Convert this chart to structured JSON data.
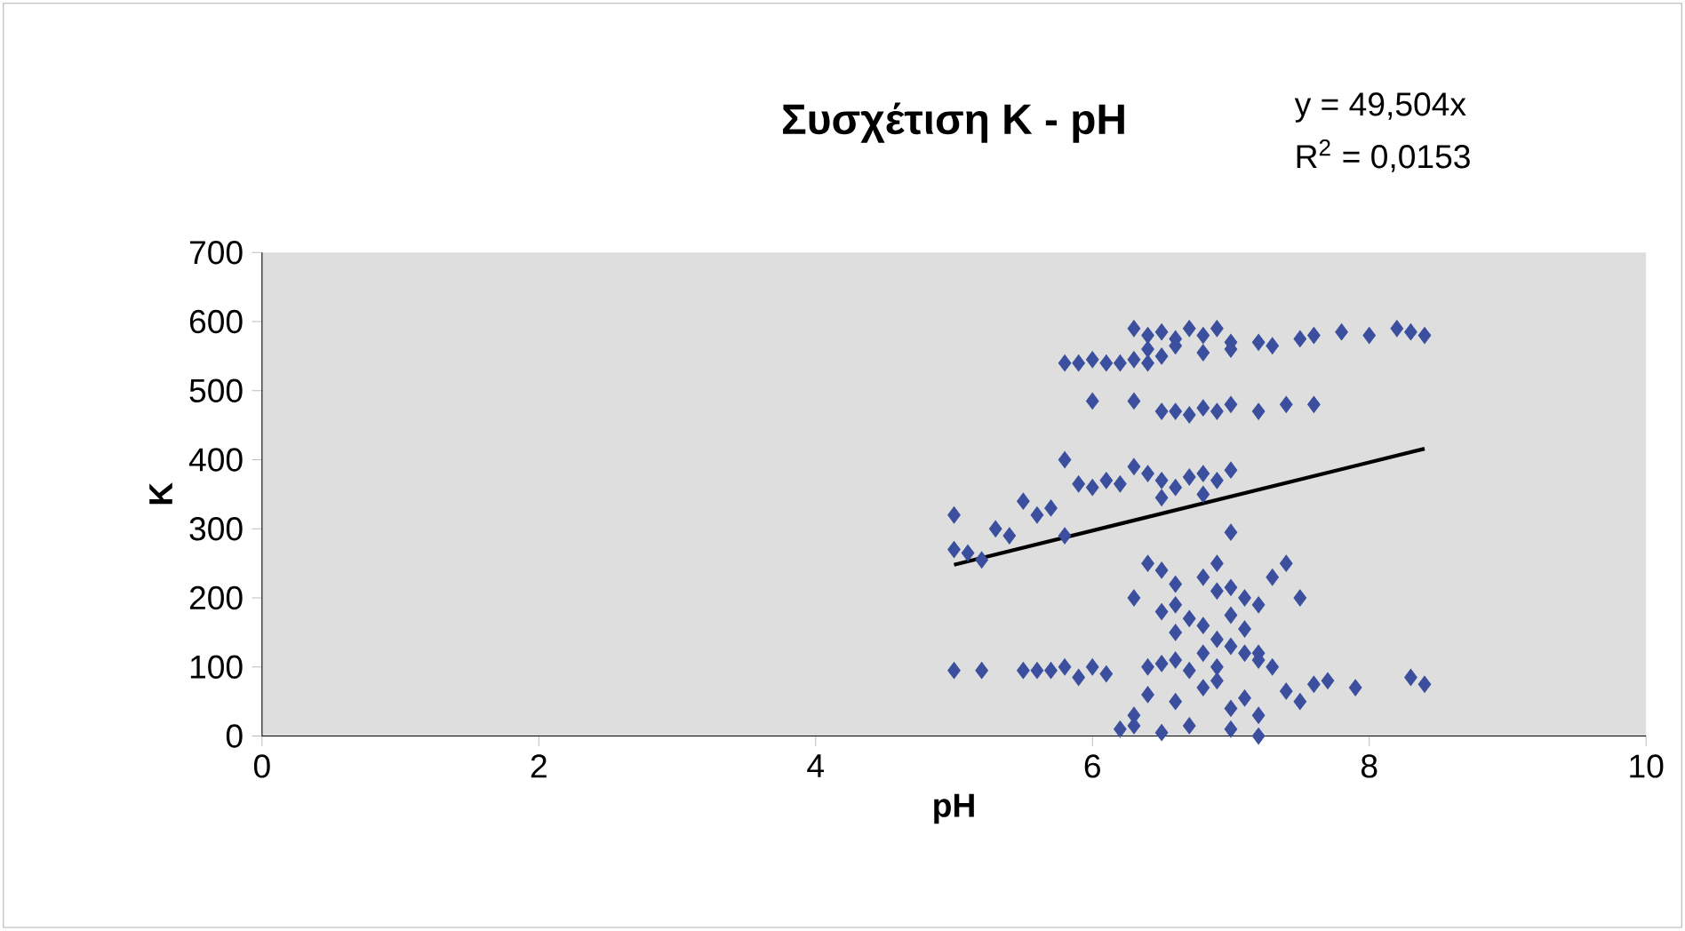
{
  "chart_data": {
    "type": "scatter",
    "title": "Συσχέτιση K - pH",
    "xlabel": "pH",
    "ylabel": "K",
    "xlim": [
      0,
      10
    ],
    "ylim": [
      0,
      700
    ],
    "xticks": [
      0,
      2,
      4,
      6,
      8,
      10
    ],
    "yticks": [
      0,
      100,
      200,
      300,
      400,
      500,
      600,
      700
    ],
    "grid": false,
    "annotations": [
      "y = 49,504x",
      "R$^{2}$ = 0,0153"
    ],
    "series": [
      {
        "color": "#3b4f9e",
        "marker": "diamond",
        "x": [
          6.3,
          6.4,
          6.5,
          6.6,
          6.7,
          6.8,
          6.9,
          7.0,
          6.4,
          6.6,
          6.8,
          7.0,
          7.2,
          7.3,
          7.5,
          7.6,
          7.8,
          8.0,
          8.2,
          8.3,
          8.4,
          5.8,
          5.9,
          6.0,
          6.1,
          6.2,
          6.3,
          6.4,
          6.5,
          6.0,
          6.3,
          6.5,
          6.6,
          6.7,
          6.8,
          6.9,
          7.0,
          7.2,
          7.4,
          7.6,
          5.8,
          6.3,
          5.9,
          6.0,
          6.1,
          6.2,
          6.4,
          6.5,
          6.6,
          6.7,
          6.8,
          6.9,
          7.0,
          6.5,
          6.8,
          5.0,
          5.0,
          5.1,
          5.2,
          5.3,
          5.4,
          5.5,
          5.6,
          5.7,
          5.8,
          7.0,
          5.0,
          5.2,
          5.5,
          5.6,
          5.7,
          5.8,
          5.9,
          6.0,
          6.1,
          6.3,
          6.4,
          6.5,
          6.6,
          6.7,
          6.8,
          6.9,
          7.0,
          7.1,
          7.2,
          7.3,
          7.4,
          7.5,
          6.4,
          6.5,
          6.6,
          6.8,
          6.9,
          7.0,
          7.1,
          7.2,
          7.3,
          7.4,
          7.5,
          6.5,
          6.6,
          6.7,
          6.8,
          6.9,
          7.0,
          7.1,
          7.2,
          6.4,
          6.6,
          6.8,
          6.9,
          7.0,
          7.1,
          7.2,
          7.6,
          7.7,
          7.9,
          8.3,
          8.4,
          6.2,
          6.3,
          6.5,
          6.7,
          7.0,
          7.2,
          6.3,
          6.6,
          6.9
        ],
        "values": [
          590,
          580,
          585,
          575,
          590,
          580,
          590,
          570,
          560,
          565,
          555,
          560,
          570,
          565,
          575,
          580,
          585,
          580,
          590,
          585,
          580,
          540,
          540,
          545,
          540,
          540,
          545,
          540,
          550,
          485,
          485,
          470,
          470,
          465,
          475,
          470,
          480,
          470,
          480,
          480,
          400,
          390,
          365,
          360,
          370,
          365,
          380,
          370,
          360,
          375,
          380,
          370,
          385,
          345,
          350,
          320,
          270,
          265,
          255,
          300,
          290,
          340,
          320,
          330,
          290,
          295,
          95,
          95,
          95,
          95,
          95,
          100,
          85,
          100,
          90,
          30,
          100,
          105,
          110,
          95,
          120,
          100,
          130,
          120,
          110,
          100,
          65,
          50,
          250,
          240,
          220,
          230,
          250,
          215,
          200,
          190,
          230,
          250,
          200,
          180,
          150,
          170,
          160,
          140,
          175,
          155,
          120,
          60,
          50,
          70,
          80,
          40,
          55,
          30,
          75,
          80,
          70,
          85,
          75,
          10,
          15,
          5,
          15,
          10,
          0,
          200,
          190,
          210
        ]
      },
      {
        "type": "line",
        "color": "#000000",
        "x": [
          5.0,
          8.4
        ],
        "values": [
          248,
          416
        ],
        "marker": "none"
      }
    ]
  }
}
